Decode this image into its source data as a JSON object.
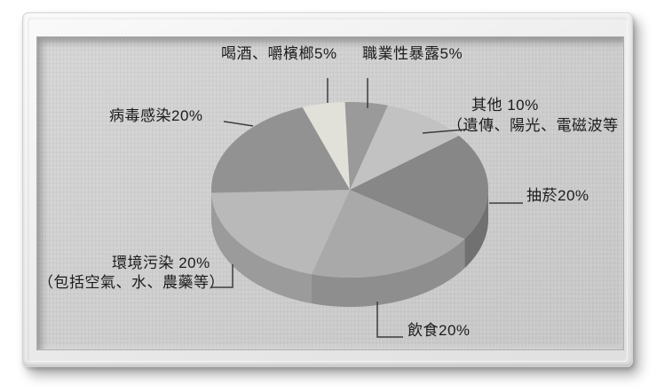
{
  "colors": {
    "canvas_background": "#cecece",
    "frame": "#ededed",
    "label_text": "#1c1c1c",
    "connector_line": "#3c3c3c"
  },
  "chart_data": {
    "type": "pie",
    "style": "3d-oval",
    "title": "",
    "unit": "%",
    "legend": "none",
    "start_angle_deg": 250,
    "slices": [
      {
        "name": "alcohol-betel",
        "label": "喝酒、嚼檳榔",
        "value": 5,
        "color": "#e1e1d9"
      },
      {
        "name": "occupational-exposure",
        "label": "職業性暴露",
        "value": 5,
        "color": "#9a9a9a"
      },
      {
        "name": "other",
        "label": "其他（遺傳、陽光、電磁波等）",
        "value": 10,
        "color": "#c2c2c2"
      },
      {
        "name": "smoking",
        "label": "抽菸",
        "value": 20,
        "color": "#878787"
      },
      {
        "name": "diet",
        "label": "飲食",
        "value": 20,
        "color": "#a9a9a9"
      },
      {
        "name": "environmental-pollution",
        "label": "環境污染（包括空氣、水、農藥等）",
        "value": 20,
        "color": "#b9b9b9"
      },
      {
        "name": "virus-infection",
        "label": "病毒感染",
        "value": 20,
        "color": "#929292"
      }
    ],
    "callouts": {
      "alcohol": "喝酒、嚼檳榔5%",
      "occupational": "職業性暴露5%",
      "other_line1": "其他 10%",
      "other_line2": "（遺傳、陽光、電磁波等",
      "smoking": "抽菸20%",
      "diet": "飲食20%",
      "environment_line1": "環境污染 20%",
      "environment_line2": "（包括空氣、水、農藥等）",
      "virus": "病毒感染20%"
    }
  }
}
